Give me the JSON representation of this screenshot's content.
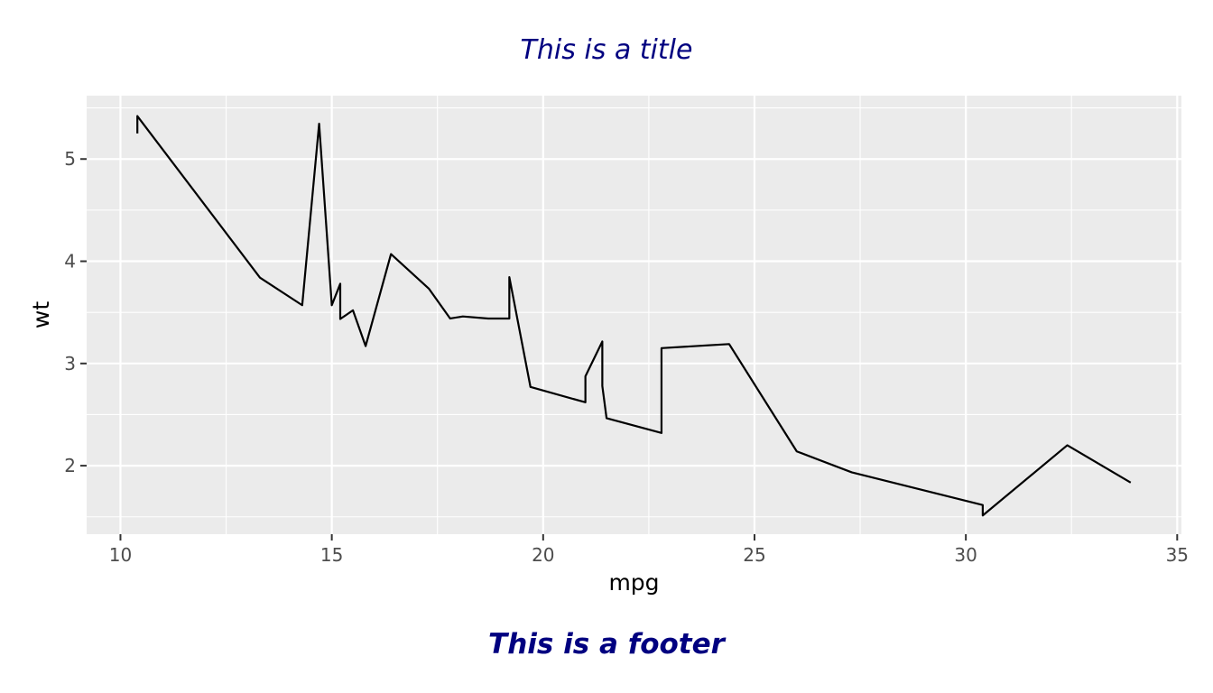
{
  "chart_data": {
    "type": "line",
    "title": "This is a title",
    "footer": "This is a footer",
    "xlabel": "mpg",
    "ylabel": "wt",
    "xlim": [
      9.2,
      35.1
    ],
    "ylim": [
      1.33,
      5.62
    ],
    "x_ticks": [
      10,
      15,
      20,
      25,
      30,
      35
    ],
    "x_tick_labels": [
      "10",
      "15",
      "20",
      "25",
      "30",
      "35"
    ],
    "y_ticks": [
      2,
      3,
      4,
      5
    ],
    "y_tick_labels": [
      "2",
      "3",
      "4",
      "5"
    ],
    "grid": true,
    "series": [
      {
        "x": [
          10.4,
          10.4,
          13.3,
          14.3,
          14.7,
          15.0,
          15.2,
          15.2,
          15.5,
          15.8,
          16.4,
          17.3,
          17.8,
          18.1,
          18.7,
          19.2,
          19.2,
          19.7,
          21.0,
          21.0,
          21.4,
          21.4,
          21.5,
          22.8,
          22.8,
          24.4,
          26.0,
          27.3,
          30.4,
          30.4,
          32.4,
          33.9
        ],
        "y": [
          5.25,
          5.42,
          3.84,
          3.57,
          5.345,
          3.57,
          3.78,
          3.435,
          3.52,
          3.17,
          4.07,
          3.73,
          3.44,
          3.46,
          3.44,
          3.44,
          3.845,
          2.77,
          2.62,
          2.875,
          3.215,
          2.78,
          2.465,
          2.32,
          3.15,
          3.19,
          2.14,
          1.935,
          1.615,
          1.513,
          2.2,
          1.835
        ]
      }
    ],
    "colors": {
      "panel_background": "#ebebeb",
      "grid_major": "#ffffff",
      "line": "#000000",
      "title": "#000080"
    }
  }
}
